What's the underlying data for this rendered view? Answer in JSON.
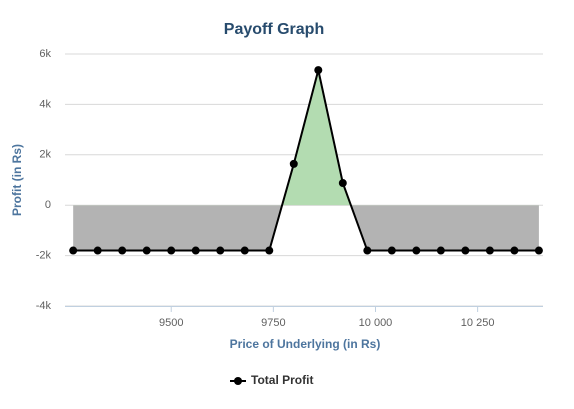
{
  "chart_data": {
    "type": "area-line",
    "title": "Payoff Graph",
    "x_label": "Price of Underlying (in Rs)",
    "y_label": "Profit (in Rs)",
    "x": [
      9260,
      9320,
      9380,
      9440,
      9500,
      9560,
      9620,
      9680,
      9740,
      9800,
      9860,
      9920,
      9980,
      10040,
      10100,
      10160,
      10220,
      10280,
      10340,
      10400
    ],
    "series": [
      {
        "name": "Total Profit",
        "color": "#000000",
        "values": [
          -1800,
          -1800,
          -1800,
          -1800,
          -1800,
          -1800,
          -1800,
          -1800,
          -1800,
          1640,
          5360,
          880,
          -1800,
          -1800,
          -1800,
          -1800,
          -1800,
          -1800,
          -1800,
          -1800
        ]
      }
    ],
    "positive_fill": "#b3dcb1",
    "negative_fill": "#b3b3b3",
    "xlim": [
      9240,
      10410
    ],
    "xticks": [
      9500,
      9750,
      {
        "value": 10000,
        "label": "10 000"
      },
      {
        "value": 10250,
        "label": "10 250"
      }
    ],
    "ylim": [
      -4000,
      6000
    ],
    "yticks": [
      {
        "value": -4000,
        "label": "-4k"
      },
      {
        "value": -2000,
        "label": "-2k"
      },
      0,
      {
        "value": 2000,
        "label": "2k"
      },
      {
        "value": 4000,
        "label": "4k"
      },
      {
        "value": 6000,
        "label": "6k"
      }
    ],
    "grid": true,
    "legend": "bottom"
  }
}
